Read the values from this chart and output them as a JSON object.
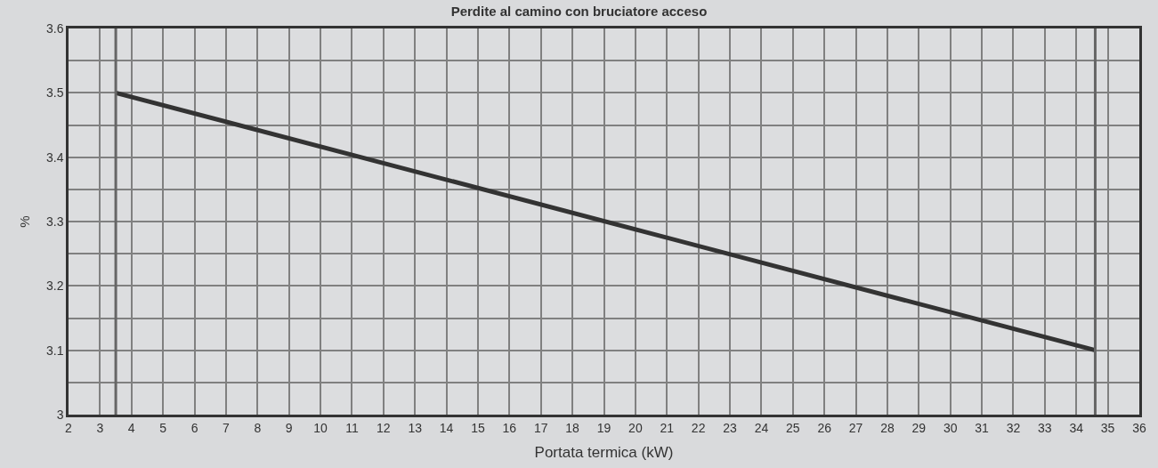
{
  "chart_data": {
    "type": "line",
    "title": "Perdite al camino con bruciatore acceso",
    "xlabel": "Portata termica (kW)",
    "ylabel": "%",
    "x": [
      3.5,
      34.6
    ],
    "series": [
      {
        "color": "#333333",
        "values": [
          3.5,
          3.1
        ]
      }
    ],
    "xlim": [
      2,
      36
    ],
    "xticks": [
      2,
      3,
      4,
      5,
      6,
      7,
      8,
      9,
      10,
      11,
      12,
      13,
      14,
      15,
      16,
      17,
      18,
      19,
      20,
      21,
      22,
      23,
      24,
      25,
      26,
      27,
      28,
      29,
      30,
      31,
      32,
      33,
      34,
      35,
      36
    ],
    "ylim": [
      3,
      3.6
    ],
    "yticks": [
      3,
      {
        "value": 3.05,
        "label": null
      },
      3.1,
      {
        "value": 3.15,
        "label": null
      },
      3.2,
      {
        "value": 3.25,
        "label": null
      },
      3.3,
      {
        "value": 3.35,
        "label": null
      },
      3.4,
      {
        "value": 3.45,
        "label": null
      },
      3.5,
      {
        "value": 3.55,
        "label": null
      },
      3.6
    ],
    "ref_lines": [
      {
        "axis": "x",
        "value": 3.5,
        "label": null,
        "color": "#666666"
      },
      {
        "axis": "x",
        "value": 34.6,
        "label": null,
        "color": "#666666"
      }
    ],
    "grid": true,
    "marker": "none",
    "line_style": "solid"
  }
}
